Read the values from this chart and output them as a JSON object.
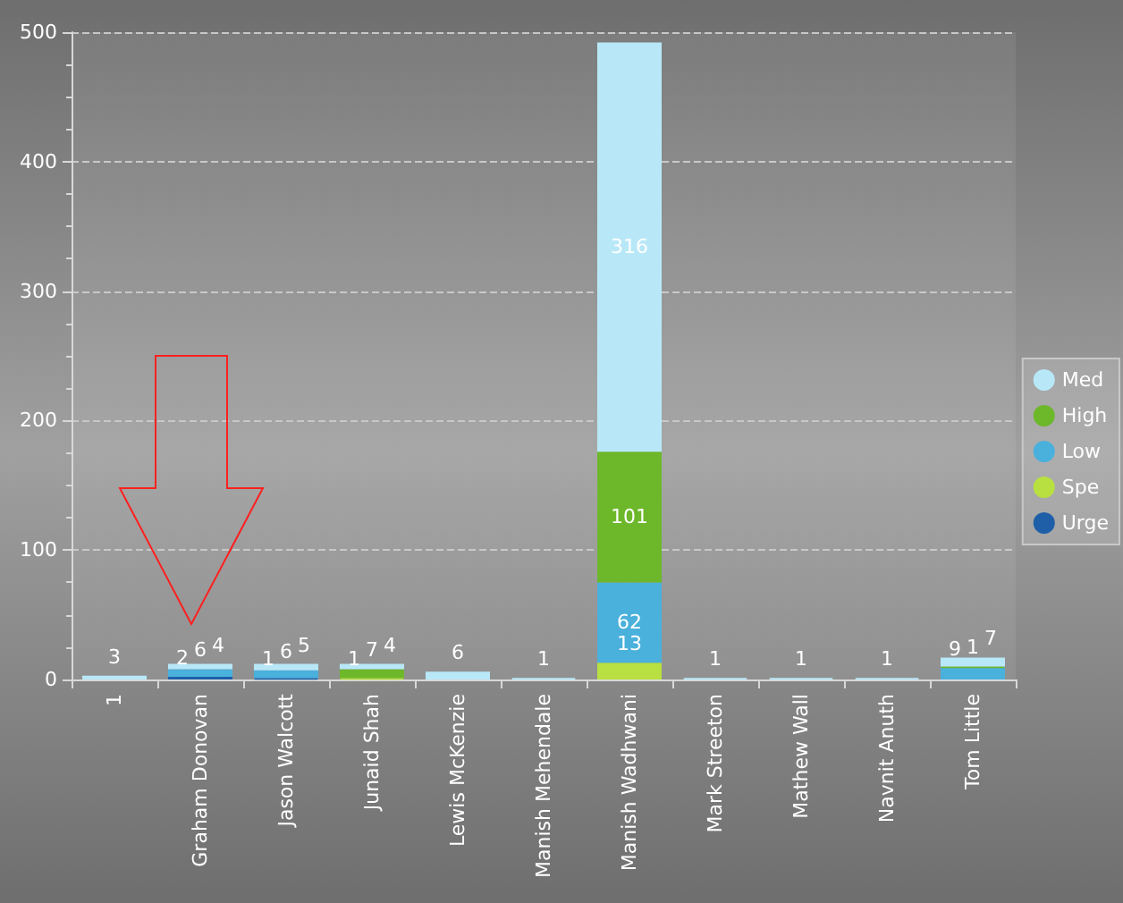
{
  "chart_data": {
    "type": "bar",
    "stacked": true,
    "data_labels": true,
    "grid": "y",
    "legend": "right",
    "categories": [
      "1",
      "Graham Donovan",
      "Jason Walcott",
      "Junaid Shah",
      "Lewis McKenzie",
      "Manish Mehendale",
      "Manish Wadhwani",
      "Mark Streeton",
      "Mathew Wall",
      "Navnit Anuth",
      "Tom Little"
    ],
    "ylim": [
      0,
      500
    ],
    "yticks": [
      0,
      100,
      200,
      300,
      400,
      500
    ],
    "series": [
      {
        "name": "Urge",
        "color": "#1e5fa8",
        "values": [
          null,
          2,
          1,
          null,
          null,
          null,
          null,
          null,
          null,
          null,
          null
        ]
      },
      {
        "name": "Spe",
        "color": "#b8e040",
        "values": [
          null,
          null,
          null,
          1,
          null,
          null,
          13,
          null,
          null,
          null,
          null
        ]
      },
      {
        "name": "Low",
        "color": "#4ab0dc",
        "values": [
          null,
          6,
          6,
          null,
          null,
          null,
          62,
          null,
          null,
          null,
          9
        ]
      },
      {
        "name": "High",
        "color": "#6db82a",
        "values": [
          null,
          null,
          null,
          7,
          null,
          null,
          101,
          null,
          null,
          null,
          1
        ]
      },
      {
        "name": "Med",
        "color": "#b8e8f8",
        "values": [
          3,
          4,
          5,
          4,
          6,
          1,
          316,
          1,
          1,
          1,
          7
        ]
      }
    ]
  }
}
